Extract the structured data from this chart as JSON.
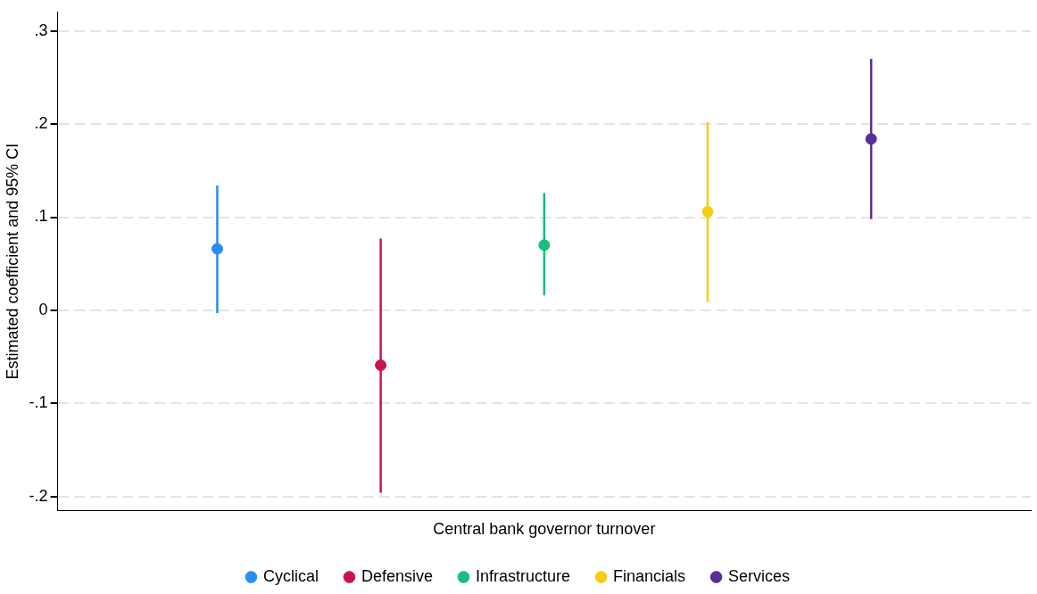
{
  "chart_data": {
    "type": "scatter",
    "ylabel": "Estimated coefficient and 95% CI",
    "categories": [
      "Central bank governor turnover"
    ],
    "series": [
      {
        "name": "Cyclical",
        "color": "#2b8cf5",
        "values": [
          0.066
        ],
        "errors": [
          [
            -0.003,
            0.134
          ]
        ]
      },
      {
        "name": "Defensive",
        "color": "#c9144f",
        "values": [
          -0.059
        ],
        "errors": [
          [
            -0.196,
            0.077
          ]
        ]
      },
      {
        "name": "Infrastructure",
        "color": "#19bd7d",
        "values": [
          0.07
        ],
        "errors": [
          [
            0.016,
            0.126
          ]
        ]
      },
      {
        "name": "Financials",
        "color": "#f5cf0f",
        "values": [
          0.106
        ],
        "errors": [
          [
            0.009,
            0.202
          ]
        ]
      },
      {
        "name": "Services",
        "color": "#5b2d9c",
        "values": [
          0.184
        ],
        "errors": [
          [
            0.098,
            0.27
          ]
        ]
      }
    ],
    "ylim": [
      -0.215,
      0.32
    ],
    "yticks": [
      {
        "value": -0.2,
        "label": "-.2"
      },
      {
        "value": -0.1,
        "label": "-.1"
      },
      {
        "value": 0,
        "label": "0"
      },
      {
        "value": 0.1,
        "label": ".1"
      },
      {
        "value": 0.2,
        "label": ".2"
      },
      {
        "value": 0.3,
        "label": ".3"
      }
    ],
    "grid": "y",
    "legend": "bottom",
    "marker": "circle"
  }
}
